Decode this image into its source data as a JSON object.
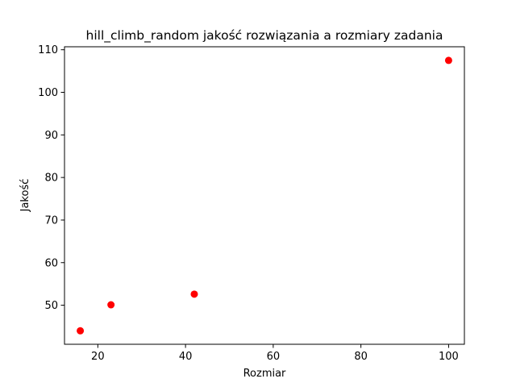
{
  "chart_data": {
    "type": "scatter",
    "title": "hill_climb_random jakość rozwiązania a rozmiary zadania",
    "xlabel": "Rozmiar",
    "ylabel": "Jakość",
    "xlim": [
      12.4,
      103.6
    ],
    "ylim": [
      40.83,
      110.7
    ],
    "xticks": [
      20,
      40,
      60,
      80,
      100
    ],
    "yticks": [
      50,
      60,
      70,
      80,
      90,
      100,
      110
    ],
    "grid": false,
    "marker_color": "#ff0000",
    "points": [
      {
        "x": 16,
        "y": 44.0
      },
      {
        "x": 23,
        "y": 50.1
      },
      {
        "x": 42,
        "y": 52.6
      },
      {
        "x": 100,
        "y": 107.5
      }
    ]
  }
}
